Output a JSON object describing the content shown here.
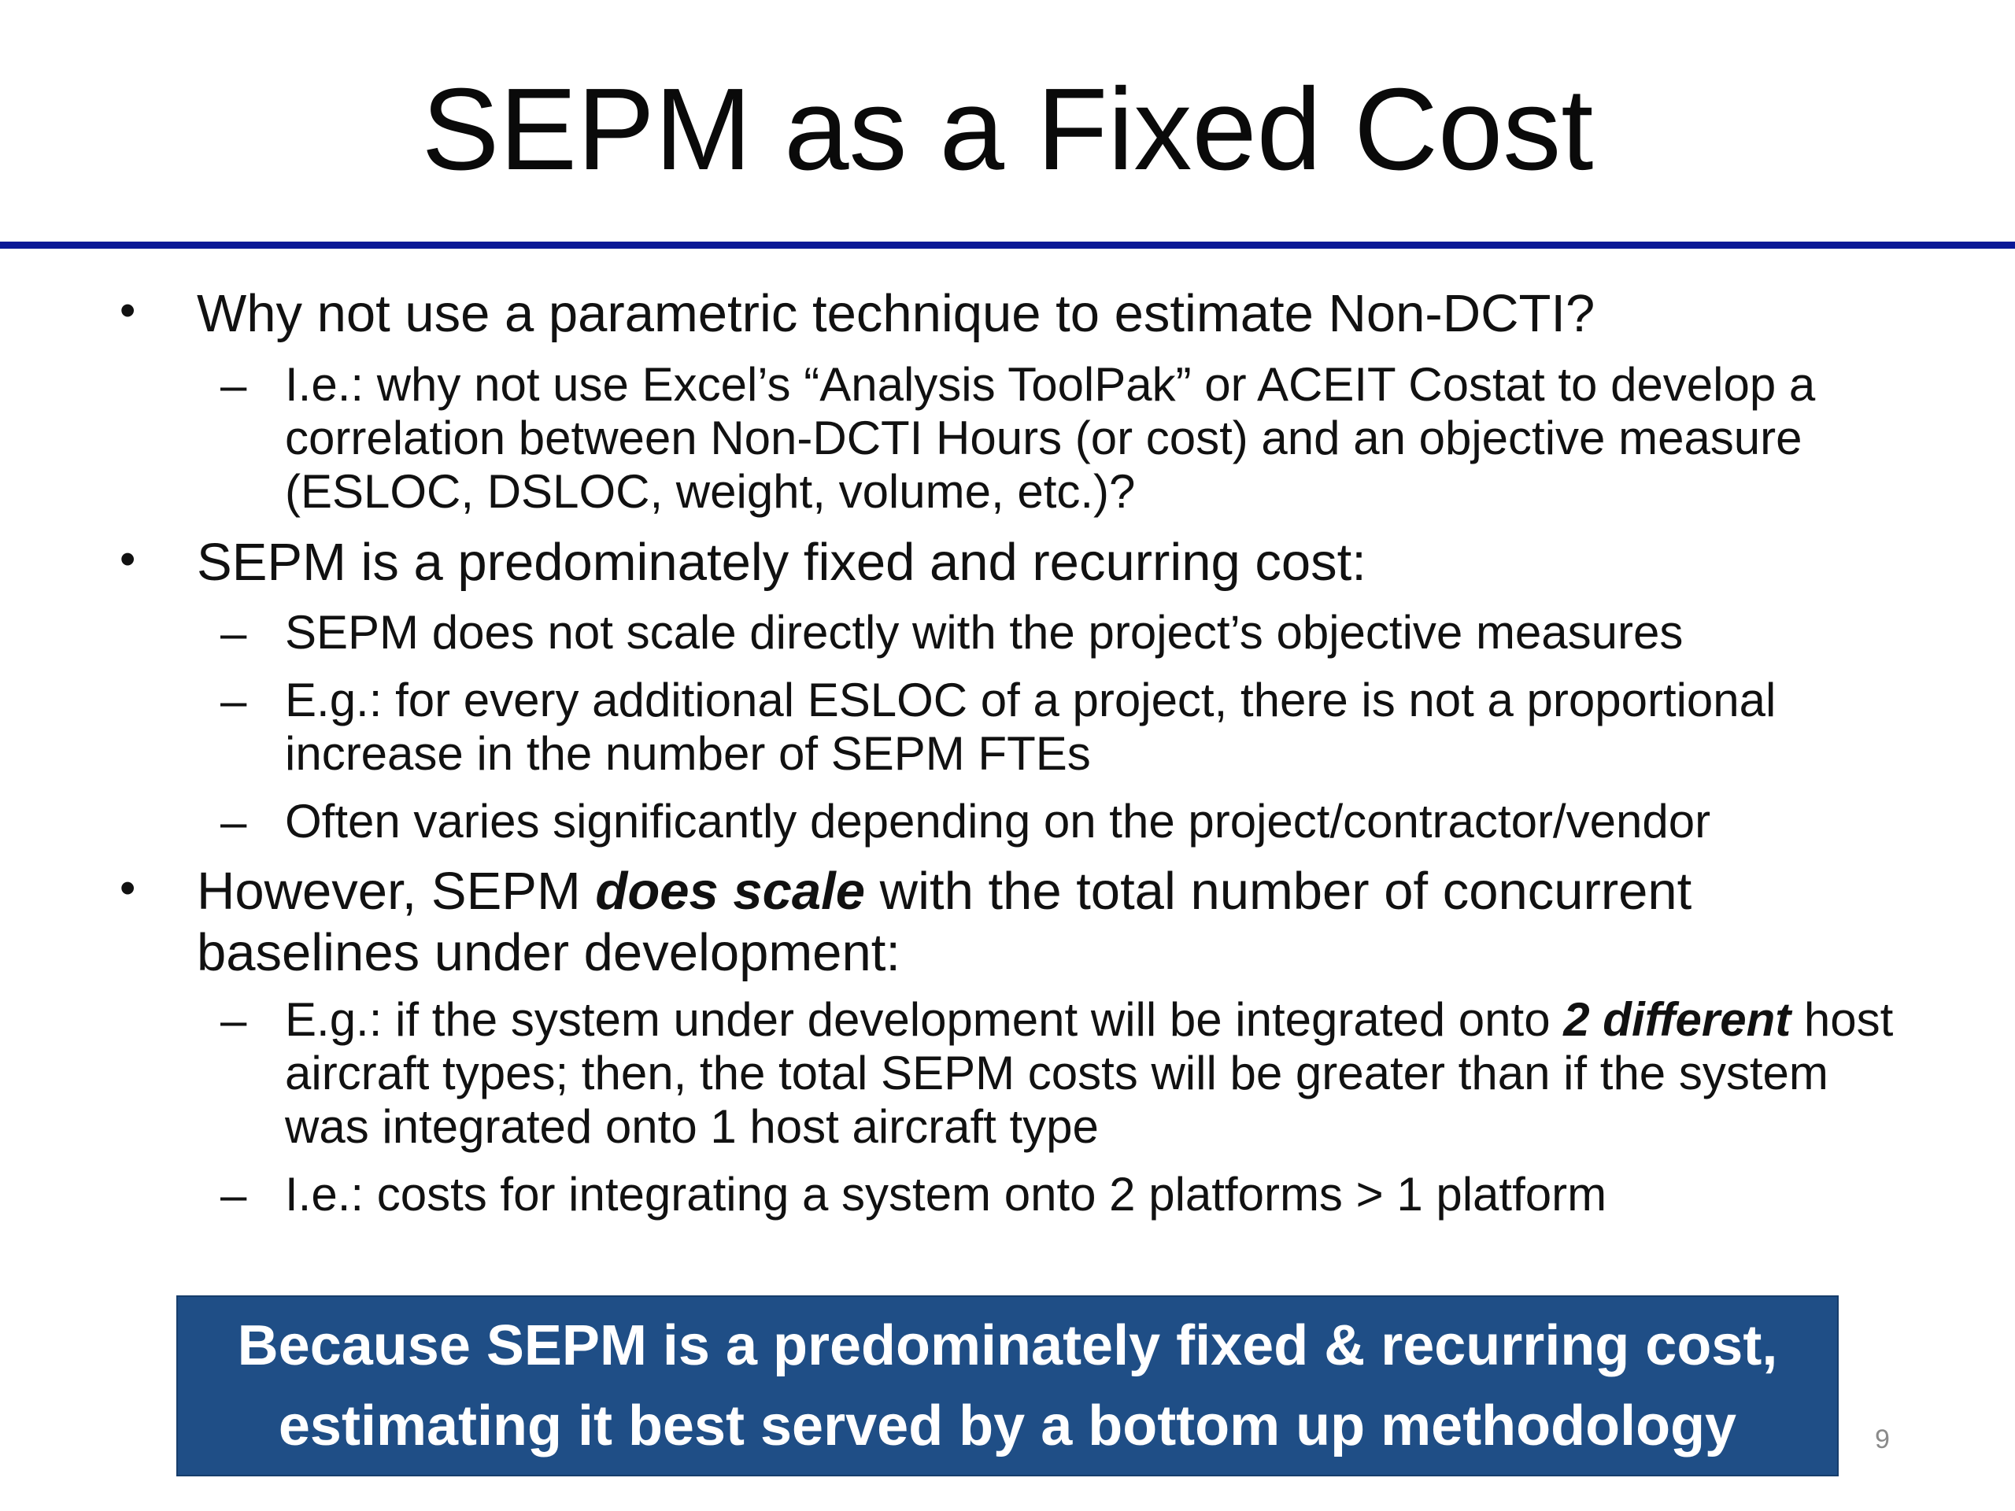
{
  "slide": {
    "title": "SEPM as a Fixed Cost",
    "page_number": "9"
  },
  "bullets": [
    {
      "level": 1,
      "symbol": "•",
      "text": "Why not use a parametric technique to estimate Non-DCTI?"
    },
    {
      "level": 2,
      "symbol": "–",
      "text": "I.e.: why not use Excel’s “Analysis ToolPak” or ACEIT Costat to develop a correlation between Non-DCTI Hours (or cost) and an objective measure (ESLOC, DSLOC, weight, volume, etc.)?"
    },
    {
      "level": 1,
      "symbol": "•",
      "text": "SEPM is a predominately fixed and recurring cost:"
    },
    {
      "level": 2,
      "symbol": "–",
      "text": "SEPM does not scale directly with the project’s objective measures"
    },
    {
      "level": 2,
      "symbol": "–",
      "text": "E.g.: for every additional ESLOC of a project, there is not a proportional increase in the number of SEPM FTEs"
    },
    {
      "level": 2,
      "symbol": "–",
      "text": "Often varies significantly depending on the project/contractor/vendor"
    },
    {
      "level": 1,
      "symbol": "•",
      "text_before": "However, SEPM ",
      "text_emphasis": "does scale",
      "text_after": " with the total number of concurrent baselines under development:"
    },
    {
      "level": 2,
      "symbol": "–",
      "text_before": "E.g.: if the system under development will be integrated onto ",
      "text_emphasis": "2 different",
      "text_after": " host aircraft types; then, the total SEPM costs will be greater than if the system was integrated onto 1 host aircraft type"
    },
    {
      "level": 2,
      "symbol": "–",
      "text": "I.e.: costs for integrating a system onto 2 platforms > 1 platform"
    }
  ],
  "callout": {
    "line1": "Because SEPM is a predominately fixed & recurring cost,",
    "line2": "estimating it best served by a bottom up methodology"
  },
  "colors": {
    "title_rule": "#0a1896",
    "callout_background": "#1f4e86",
    "callout_text": "#ffffff",
    "page_number": "#8a8a8a"
  }
}
